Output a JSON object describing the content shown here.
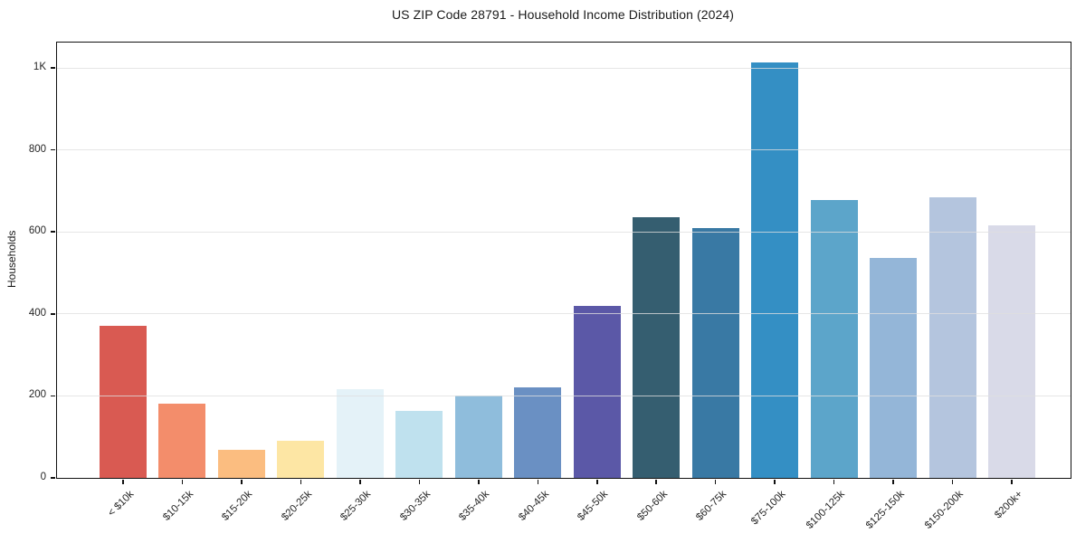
{
  "chart_data": {
    "type": "bar",
    "title": "US ZIP Code 28791 - Household Income Distribution (2024)",
    "xlabel": "",
    "ylabel": "Households",
    "categories": [
      "< $10k",
      "$10-15k",
      "$15-20k",
      "$20-25k",
      "$25-30k",
      "$30-35k",
      "$35-40k",
      "$40-45k",
      "$45-50k",
      "$50-60k",
      "$60-75k",
      "$75-100k",
      "$100-125k",
      "$125-150k",
      "$150-200k",
      "$200k+"
    ],
    "values": [
      370,
      181,
      68,
      90,
      216,
      163,
      201,
      221,
      420,
      636,
      609,
      1014,
      678,
      537,
      685,
      616
    ],
    "bar_colors": [
      "#d95a52",
      "#f38d6b",
      "#fbbd80",
      "#fde6a4",
      "#e4f2f8",
      "#bfe1ee",
      "#8fbddc",
      "#6a90c3",
      "#5b58a7",
      "#355e70",
      "#3979a4",
      "#348fc4",
      "#5ca5ca",
      "#94b6d8",
      "#b4c5de",
      "#d9dae8"
    ],
    "ylim": [
      0,
      1062
    ],
    "yticks": [
      {
        "value": 0,
        "label": "0"
      },
      {
        "value": 200,
        "label": "200"
      },
      {
        "value": 400,
        "label": "400"
      },
      {
        "value": 600,
        "label": "600"
      },
      {
        "value": 800,
        "label": "800"
      },
      {
        "value": 1000,
        "label": "1K"
      }
    ],
    "grid": "horizontal",
    "legend": "none",
    "colors": {
      "background": "#ffffff",
      "axis_border": "#111111",
      "gridline": "#dfdfdf",
      "title_text": "#1a1a1a",
      "tick_text": "#262626"
    }
  }
}
